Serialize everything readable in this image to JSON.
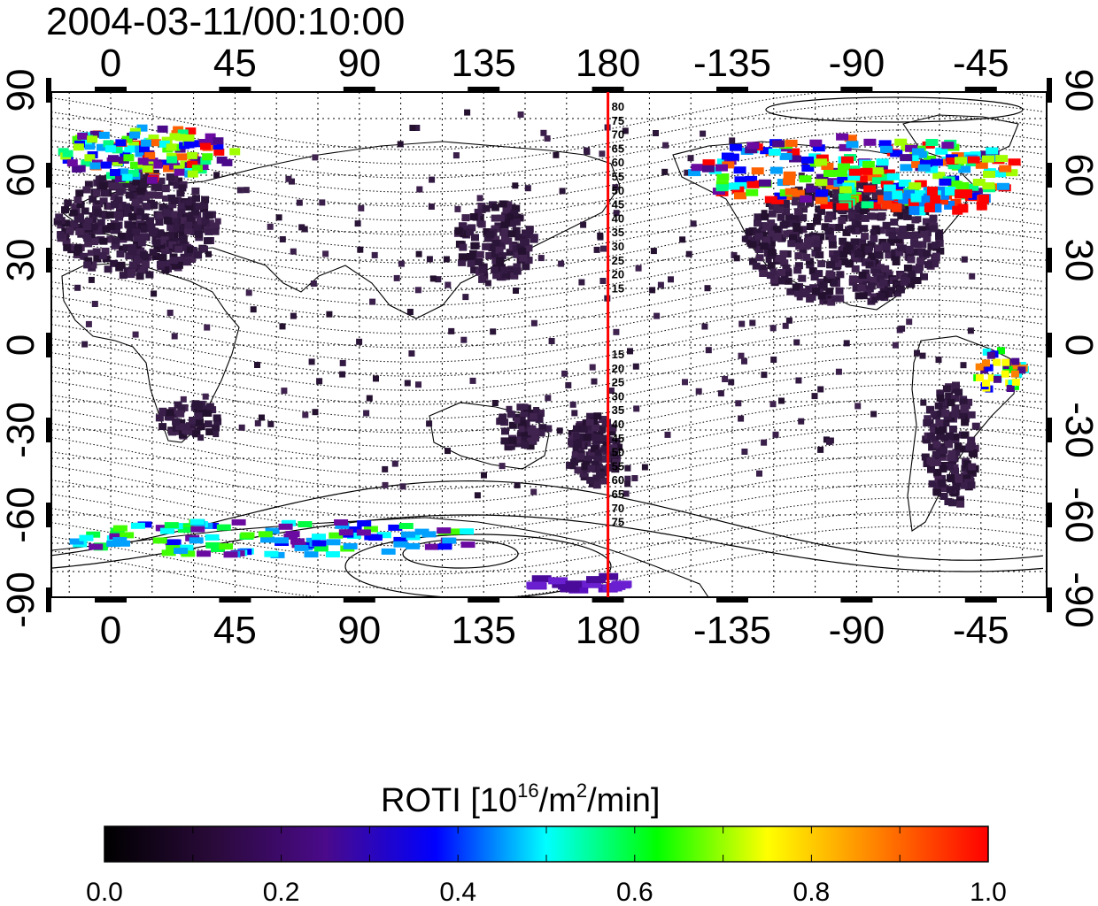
{
  "title": "2004-03-11/00:10:00",
  "map": {
    "projection": "equirectangular, centered on 155E",
    "lon_tick_labels": [
      "0",
      "45",
      "90",
      "135",
      "180",
      "-135",
      "-90",
      "-45"
    ],
    "lat_tick_labels": [
      "90",
      "60",
      "30",
      "0",
      "-30",
      "-60",
      "-90"
    ],
    "meridian_line": {
      "longitude": 180,
      "color": "#ff0000"
    },
    "contour_labels_north": [
      "80",
      "75",
      "70",
      "65",
      "60",
      "55",
      "50",
      "45",
      "40",
      "35",
      "30",
      "25",
      "20",
      "15"
    ],
    "contour_labels_south": [
      "15",
      "20",
      "25",
      "30",
      "35",
      "40",
      "45",
      "50",
      "55",
      "60",
      "65",
      "70",
      "75"
    ],
    "background": "#ffffff",
    "grid_style": "dotted"
  },
  "colorbar": {
    "title_prefix": "ROTI  [10",
    "title_exp1": "16",
    "title_mid": "/m",
    "title_exp2": "2",
    "title_suffix": "/min]",
    "tick_labels": [
      "0.0",
      "0.2",
      "0.4",
      "0.6",
      "0.8",
      "1.0"
    ],
    "min": 0.0,
    "max": 1.0,
    "colors": [
      "#000000",
      "#2a0a3a",
      "#4a0a8a",
      "#0000ff",
      "#00ffff",
      "#00ff00",
      "#ffff00",
      "#ff8000",
      "#ff0000"
    ]
  }
}
